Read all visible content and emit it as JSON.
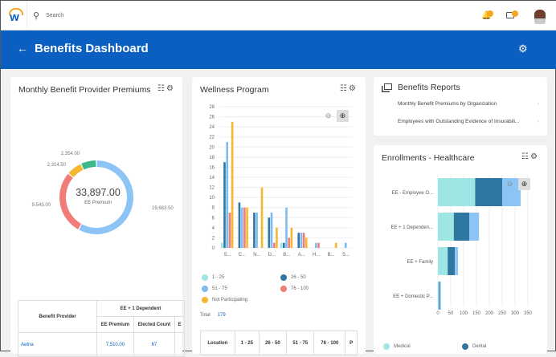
{
  "topbar": {
    "search_placeholder": "Search",
    "notifications_badge": "",
    "inbox_badge": ""
  },
  "header": {
    "title": "Benefits Dashboard"
  },
  "premiums": {
    "title": "Monthly Benefit Provider Premiums",
    "center_value": "33,897.00",
    "center_label": "EE Premium",
    "slices": [
      {
        "label": "19,683.50",
        "value": 19683.5,
        "color": "#8cc4f5"
      },
      {
        "label": "9,545.00",
        "value": 9545,
        "color": "#f27d78"
      },
      {
        "label": "2,314.50",
        "value": 2314.5,
        "color": "#f5b731"
      },
      {
        "label": "2,354.00",
        "value": 2354,
        "color": "#3db88b"
      }
    ],
    "table": {
      "group_header": "EE + 1 Dependent",
      "col_provider": "Benefit Provider",
      "col_premium": "EE Premium",
      "col_count": "Elected Count",
      "col_more": "E",
      "rows": [
        {
          "provider": "Aetna",
          "premium": "7,510.00",
          "count": "67"
        }
      ]
    }
  },
  "wellness": {
    "title": "Wellness Program",
    "total_label": "Total",
    "total_value": "179",
    "table": {
      "headers": [
        "Location",
        "1 - 25",
        "26 - 50",
        "51 - 75",
        "76 - 100",
        "P"
      ]
    }
  },
  "reports": {
    "title": "Benefits Reports",
    "items": [
      "Monthly Benefit Premiums by Organization",
      "Employees with Outstanding Evidence of Insurabili..."
    ]
  },
  "enrollments": {
    "title": "Enrollments - Healthcare"
  },
  "chart_data": [
    {
      "type": "bar",
      "title": "Wellness Program",
      "categories": [
        "S...",
        "C...",
        "N...",
        "D...",
        "B...",
        "A...",
        "H...",
        "B...",
        "S..."
      ],
      "ylim": [
        0,
        28
      ],
      "yticks": [
        0,
        2,
        4,
        6,
        8,
        10,
        12,
        14,
        16,
        18,
        20,
        22,
        24,
        26,
        28
      ],
      "grid": true,
      "legend": "bottom",
      "series": [
        {
          "name": "1 - 25",
          "color": "#9ee6e3",
          "values": [
            1,
            0,
            0,
            0,
            1,
            0,
            0,
            0,
            0
          ]
        },
        {
          "name": "26 - 50",
          "color": "#2e77a0",
          "values": [
            17,
            9,
            7,
            6,
            1,
            3,
            0,
            0,
            0
          ]
        },
        {
          "name": "51 - 75",
          "color": "#7cbcf2",
          "values": [
            21,
            8,
            7,
            7,
            8,
            3,
            1,
            0,
            1
          ]
        },
        {
          "name": "76 - 100",
          "color": "#f27d78",
          "values": [
            7,
            8,
            0,
            1,
            2,
            3,
            1,
            0,
            0
          ]
        },
        {
          "name": "Not Participating",
          "color": "#f5b731",
          "values": [
            25,
            8,
            12,
            4,
            4,
            2,
            0,
            1,
            0
          ]
        }
      ]
    },
    {
      "type": "bar",
      "orientation": "horizontal",
      "stacked": true,
      "title": "Enrollments - Healthcare",
      "categories": [
        "EE - Employee O...",
        "EE + 1 Dependen...",
        "EE + Family",
        "EE + Domestic P..."
      ],
      "xlim": [
        0,
        350
      ],
      "xticks": [
        0,
        50,
        100,
        150,
        200,
        250,
        300,
        350
      ],
      "grid": true,
      "legend": "bottom",
      "series": [
        {
          "name": "Medical",
          "color": "#9ee6e3",
          "values": [
            145,
            62,
            38,
            3
          ]
        },
        {
          "name": "Dental",
          "color": "#2e77a0",
          "values": [
            105,
            60,
            28,
            3
          ]
        },
        {
          "color": "#8cc4f5",
          "values": [
            72,
            38,
            12,
            6
          ]
        }
      ]
    }
  ]
}
